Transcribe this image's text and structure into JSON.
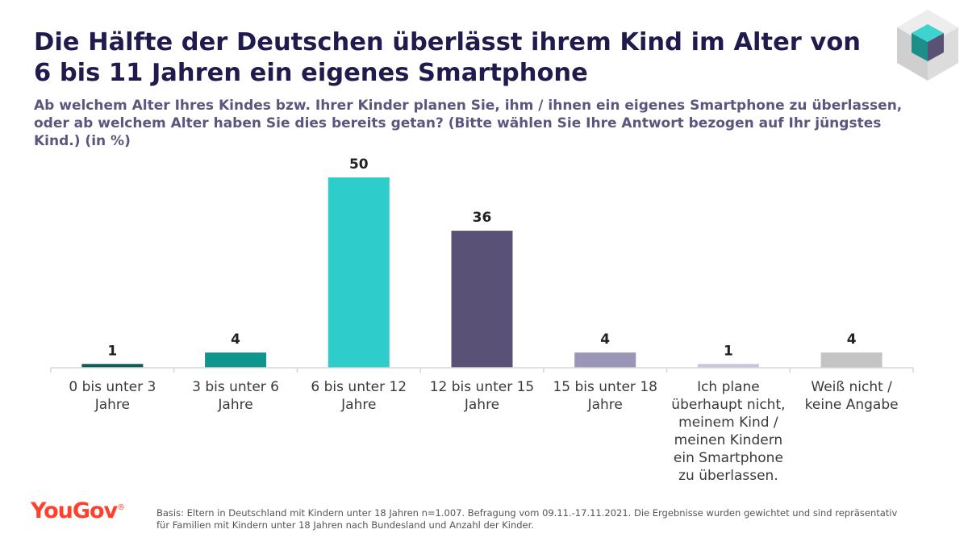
{
  "header": {
    "title": "Die Hälfte der Deutschen überlässt ihrem Kind im Alter von 6 bis 11 Jahren ein eigenes Smartphone",
    "subtitle": "Ab welchem Alter Ihres Kindes bzw. Ihrer Kinder planen Sie, ihm / ihnen ein eigenes Smartphone zu überlassen, oder ab welchem Alter haben Sie dies bereits getan? (Bitte wählen Sie Ihre Antwort bezogen auf Ihr jüngstes Kind.) (in %)"
  },
  "chart_data": {
    "type": "bar",
    "title": "Die Hälfte der Deutschen überlässt ihrem Kind im Alter von 6 bis 11 Jahren ein eigenes Smartphone",
    "categories": [
      [
        "0 bis unter 3",
        "Jahre"
      ],
      [
        "3 bis unter 6",
        "Jahre"
      ],
      [
        "6 bis unter 12",
        "Jahre"
      ],
      [
        "12 bis unter 15",
        "Jahre"
      ],
      [
        "15 bis unter 18",
        "Jahre"
      ],
      [
        "Ich plane",
        "überhaupt nicht,",
        "meinem Kind /",
        "meinen Kindern",
        "ein Smartphone",
        "zu überlassen."
      ],
      [
        "Weiß nicht /",
        "keine Angabe"
      ]
    ],
    "values": [
      1,
      4,
      50,
      36,
      4,
      1,
      4
    ],
    "colors": [
      "#0d5c56",
      "#10958c",
      "#2ecdcb",
      "#5a5276",
      "#9a96b8",
      "#c9c5e0",
      "#c4c4c4"
    ],
    "xlabel": "",
    "ylabel": "",
    "ylim": [
      0,
      50
    ],
    "grid": false,
    "legend": "none"
  },
  "footer": {
    "brand": "YouGov",
    "brand_mark": "®",
    "note": "Basis: Eltern in Deutschland mit Kindern unter 18 Jahren n=1.007. Befragung vom 09.11.-17.11.2021. Die Ergebnisse wurden gewichtet und sind repräsentativ für Familien mit Kindern unter 18 Jahren nach Bundesland und Anzahl der Kinder."
  },
  "icons": {
    "corner_logo": "cube-icon"
  }
}
